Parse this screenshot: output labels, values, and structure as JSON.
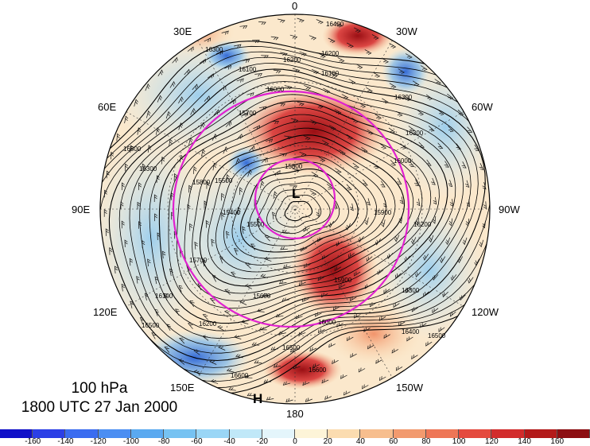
{
  "map": {
    "projection": "north-polar-stereographic",
    "field": "geopotential-height",
    "anomaly_shading": "yes",
    "wind_barbs": "yes",
    "level_text": "100 hPa",
    "time_text": "1800 UTC 27 Jan 2000",
    "longitude_labels": [
      "0",
      "30W",
      "60W",
      "90W",
      "120W",
      "150W",
      "180",
      "150E",
      "120E",
      "90E",
      "60E",
      "30E"
    ],
    "low_marker": "L",
    "high_marker": "H",
    "contour_labels": [
      "16400",
      "16200",
      "16300",
      "16100",
      "16000",
      "15800",
      "15700",
      "15600",
      "15500",
      "15400",
      "15900",
      "16500",
      "16600"
    ],
    "colors": {
      "ring": "#e020d0",
      "contour": "#000000",
      "positive": "#b01c1c",
      "negative": "#2a63d6"
    }
  },
  "colorbar": {
    "tick_labels": [
      "-160",
      "-140",
      "-120",
      "-100",
      "-80",
      "-60",
      "-40",
      "-20",
      "0",
      "20",
      "40",
      "60",
      "80",
      "100",
      "120",
      "140",
      "160"
    ],
    "colors": [
      "#1010c8",
      "#2b3fe6",
      "#3a6cf0",
      "#4b8ef2",
      "#5aa9f0",
      "#76c2f2",
      "#9ad6f6",
      "#c0e8f8",
      "#e4f5fb",
      "#fdf4d8",
      "#fbdcb0",
      "#f7be8e",
      "#f29a6e",
      "#ee7656",
      "#e44a3e",
      "#d22c2c",
      "#b31a1a",
      "#8c0e12"
    ]
  }
}
